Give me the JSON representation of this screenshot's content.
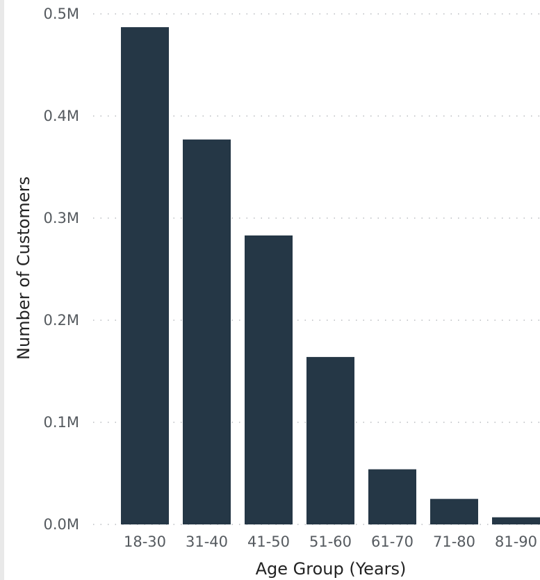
{
  "chart_data": {
    "type": "bar",
    "title": "",
    "xlabel": "Age Group (Years)",
    "ylabel": "Number of Customers",
    "categories": [
      "18-30",
      "31-40",
      "41-50",
      "51-60",
      "61-70",
      "71-80",
      "81-90"
    ],
    "values": [
      487000,
      377000,
      283000,
      164000,
      54000,
      25000,
      7000
    ],
    "ylim": [
      0,
      500000
    ],
    "yticks": [
      0,
      100000,
      200000,
      300000,
      400000,
      500000
    ],
    "ytick_labels": [
      "0.0M",
      "0.1M",
      "0.2M",
      "0.3M",
      "0.4M",
      "0.5M"
    ],
    "grid": true,
    "bar_color": "#253746",
    "gridline_color": "#b9bcc0"
  }
}
